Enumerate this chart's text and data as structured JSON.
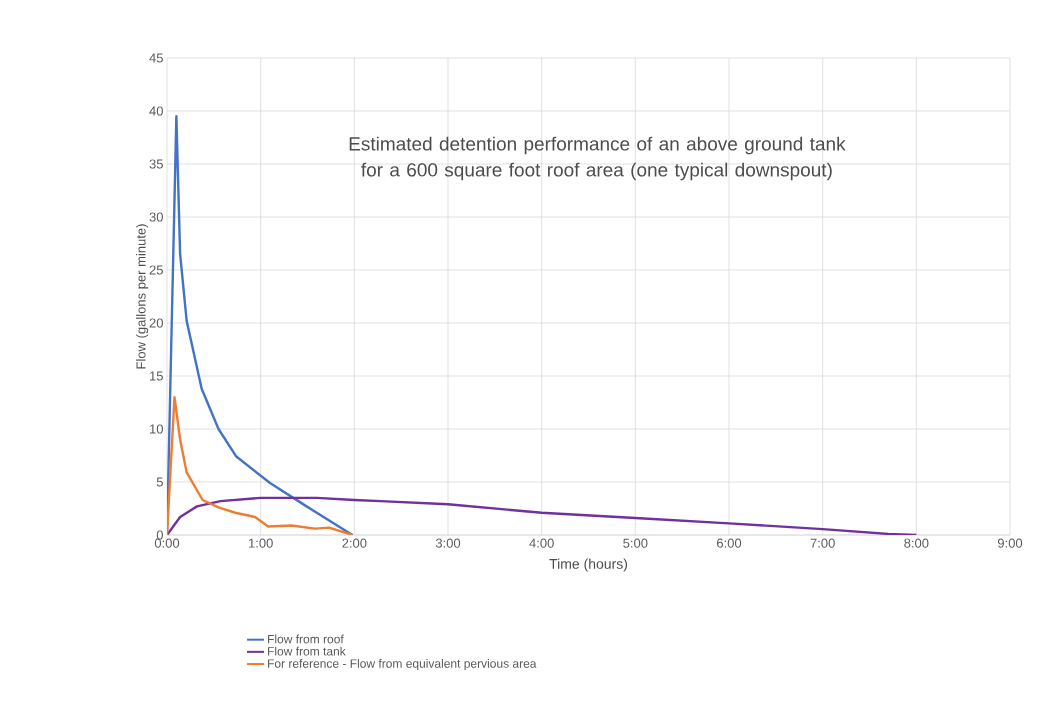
{
  "chart_data": {
    "type": "line",
    "title": "Estimated detention performance of an above ground tank for a 600 square foot roof area (one typical downspout)",
    "xlabel": "Time (hours)",
    "ylabel": "Flow (gallons per minute)",
    "xlim": [
      0,
      9
    ],
    "ylim": [
      0,
      45
    ],
    "xticks": [
      {
        "value": 0,
        "label": "0:00"
      },
      {
        "value": 1,
        "label": "1:00"
      },
      {
        "value": 2,
        "label": "2:00"
      },
      {
        "value": 3,
        "label": "3:00"
      },
      {
        "value": 4,
        "label": "4:00"
      },
      {
        "value": 5,
        "label": "5:00"
      },
      {
        "value": 6,
        "label": "6:00"
      },
      {
        "value": 7,
        "label": "7:00"
      },
      {
        "value": 8,
        "label": "8:00"
      },
      {
        "value": 9,
        "label": "9:00"
      }
    ],
    "yticks": [
      0,
      5,
      10,
      15,
      20,
      25,
      30,
      35,
      40,
      45
    ],
    "grid": true,
    "legend": "bottom",
    "series": [
      {
        "name": "Flow from roof",
        "color": "#4472c4",
        "x": [
          0,
          0.1,
          0.14,
          0.21,
          0.37,
          0.55,
          0.74,
          1.1,
          1.49,
          1.98
        ],
        "values": [
          0,
          39.5,
          26.5,
          20.2,
          13.8,
          10,
          7.4,
          4.9,
          2.7,
          0
        ]
      },
      {
        "name": "Flow from tank",
        "color": "#7030a0",
        "x": [
          0,
          0.14,
          0.32,
          0.57,
          1.0,
          1.6,
          2.0,
          2.28,
          3.0,
          4.0,
          5.0,
          6.0,
          7.0,
          7.7,
          8.0
        ],
        "values": [
          0,
          1.7,
          2.7,
          3.2,
          3.5,
          3.5,
          3.3,
          3.2,
          2.9,
          2.1,
          1.6,
          1.1,
          0.55,
          0.1,
          0
        ]
      },
      {
        "name": "For reference - Flow from equivalent pervious area",
        "color": "#ed7d31",
        "x": [
          0,
          0.08,
          0.14,
          0.21,
          0.38,
          0.55,
          0.73,
          0.94,
          1.08,
          1.33,
          1.58,
          1.73,
          1.98
        ],
        "values": [
          0,
          13,
          9,
          5.9,
          3.3,
          2.6,
          2.1,
          1.7,
          0.8,
          0.9,
          0.6,
          0.7,
          0
        ]
      }
    ]
  }
}
